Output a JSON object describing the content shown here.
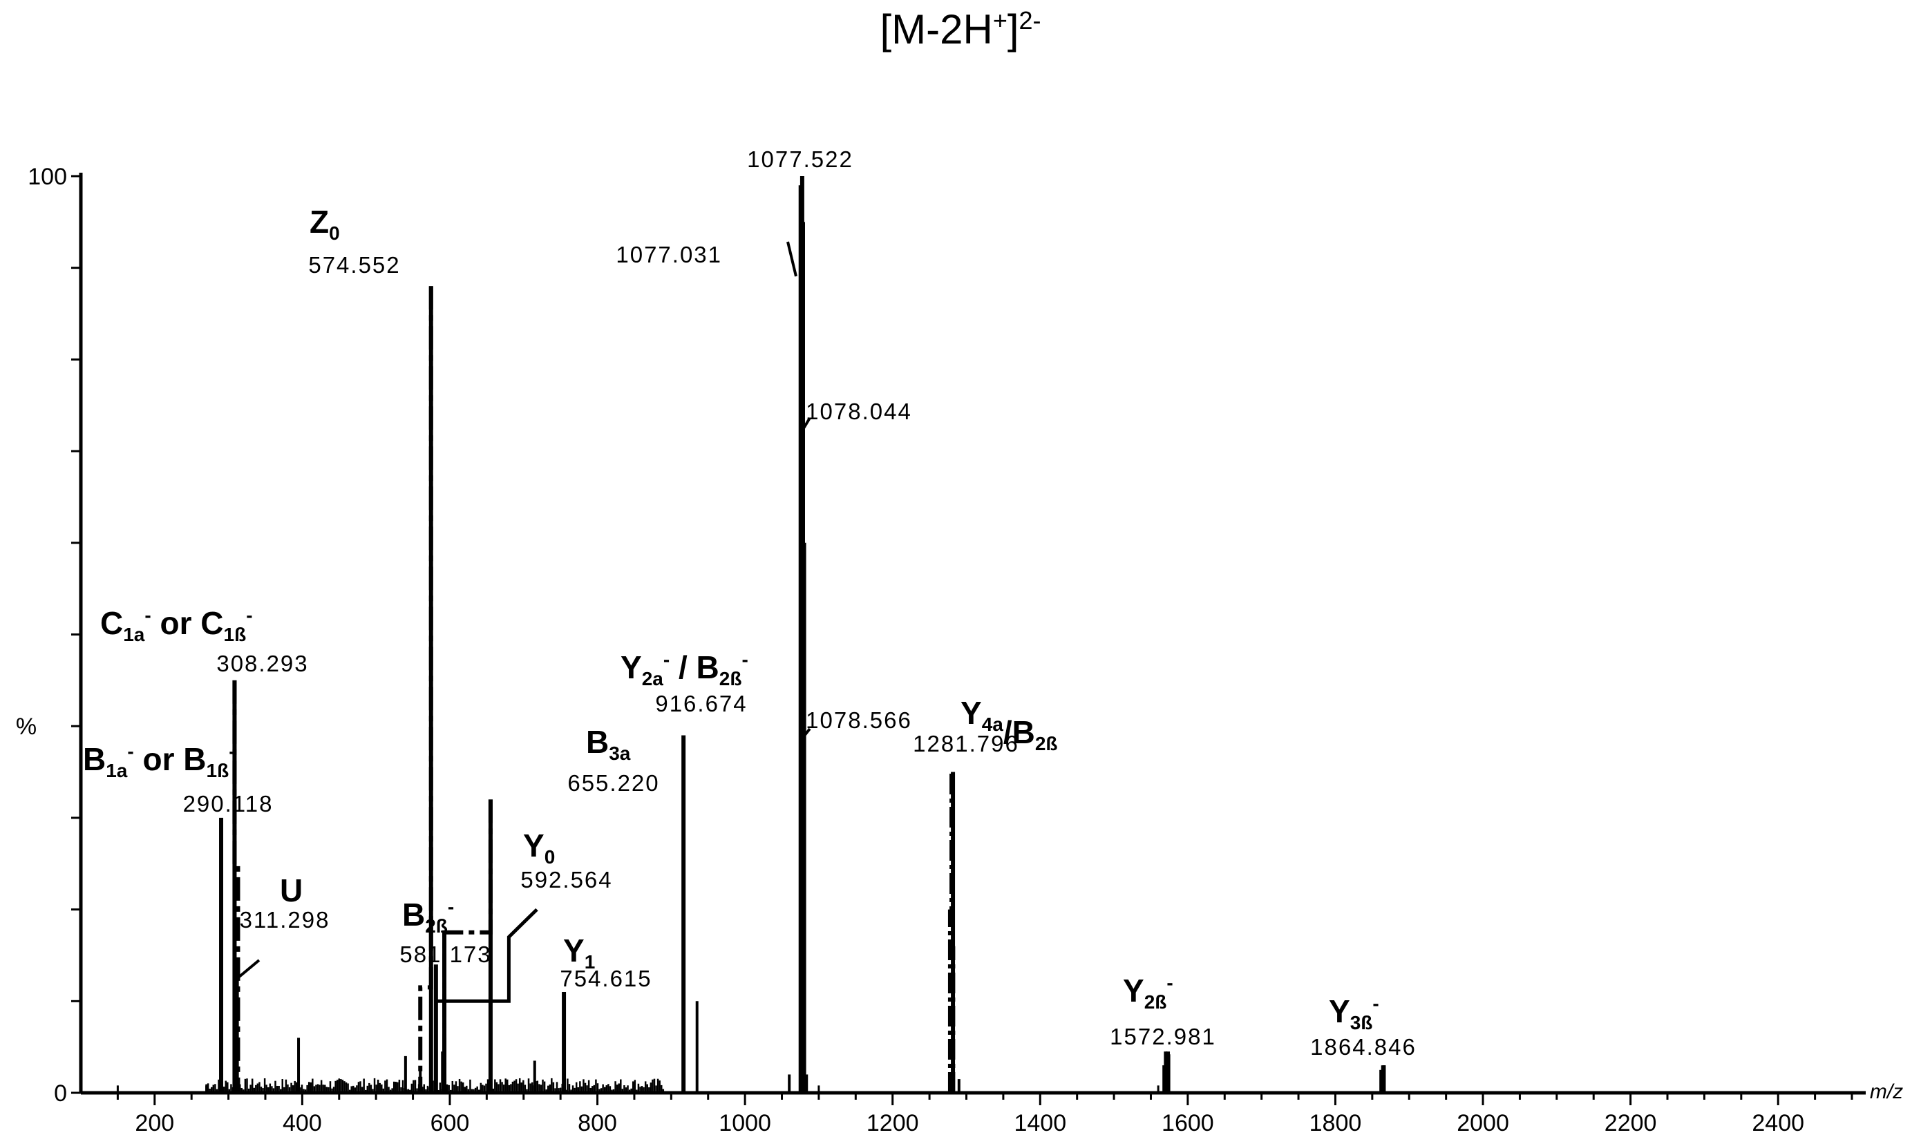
{
  "chart_data": {
    "type": "bar",
    "title_main": "[M-2H",
    "title_sup1": "+",
    "title_mid": "]",
    "title_sup2": "2-",
    "xlabel": "m/z",
    "ylabel": "%",
    "xlim": [
      100,
      2500
    ],
    "ylim": [
      0,
      100
    ],
    "x_ticks": [
      200,
      400,
      600,
      800,
      1000,
      1200,
      1400,
      1600,
      1800,
      2000,
      2200,
      2400
    ],
    "y_ticks": [
      0,
      100
    ],
    "peaks": [
      {
        "mz": 290.118,
        "intensity": 30,
        "label": "290.118",
        "ion": "B1a- or B1ß-"
      },
      {
        "mz": 308.293,
        "intensity": 45,
        "label": "308.293",
        "ion": "C1a- or C1ß-"
      },
      {
        "mz": 311.298,
        "intensity": 14,
        "label": "311.298",
        "ion": "U"
      },
      {
        "mz": 574.552,
        "intensity": 88,
        "label": "574.552",
        "ion": "Z0"
      },
      {
        "mz": 581.173,
        "intensity": 14,
        "label": "581.173",
        "ion": "B2ß-"
      },
      {
        "mz": 592.564,
        "intensity": 6,
        "label": "592.564",
        "ion": "Y0"
      },
      {
        "mz": 655.22,
        "intensity": 32,
        "label": "655.220",
        "ion": "B3a"
      },
      {
        "mz": 754.615,
        "intensity": 11,
        "label": "754.615",
        "ion": "Y1"
      },
      {
        "mz": 916.674,
        "intensity": 39,
        "label": "916.674",
        "ion": "Y2a- / B2ß-"
      },
      {
        "mz": 1077.522,
        "intensity": 100,
        "label": "1077.522",
        "ion": ""
      },
      {
        "mz": 1077.031,
        "intensity": 89,
        "label": "1077.031",
        "ion": ""
      },
      {
        "mz": 1078.044,
        "intensity": 72,
        "label": "1078.044",
        "ion": ""
      },
      {
        "mz": 1078.566,
        "intensity": 38,
        "label": "1078.566",
        "ion": ""
      },
      {
        "mz": 1281.796,
        "intensity": 35,
        "label": "1281.796",
        "ion": "Y4a/B2ß"
      },
      {
        "mz": 1572.981,
        "intensity": 4.5,
        "label": "1572.981",
        "ion": "Y2ß-"
      },
      {
        "mz": 1864.846,
        "intensity": 3,
        "label": "1864.846",
        "ion": "Y3ß-"
      }
    ]
  }
}
